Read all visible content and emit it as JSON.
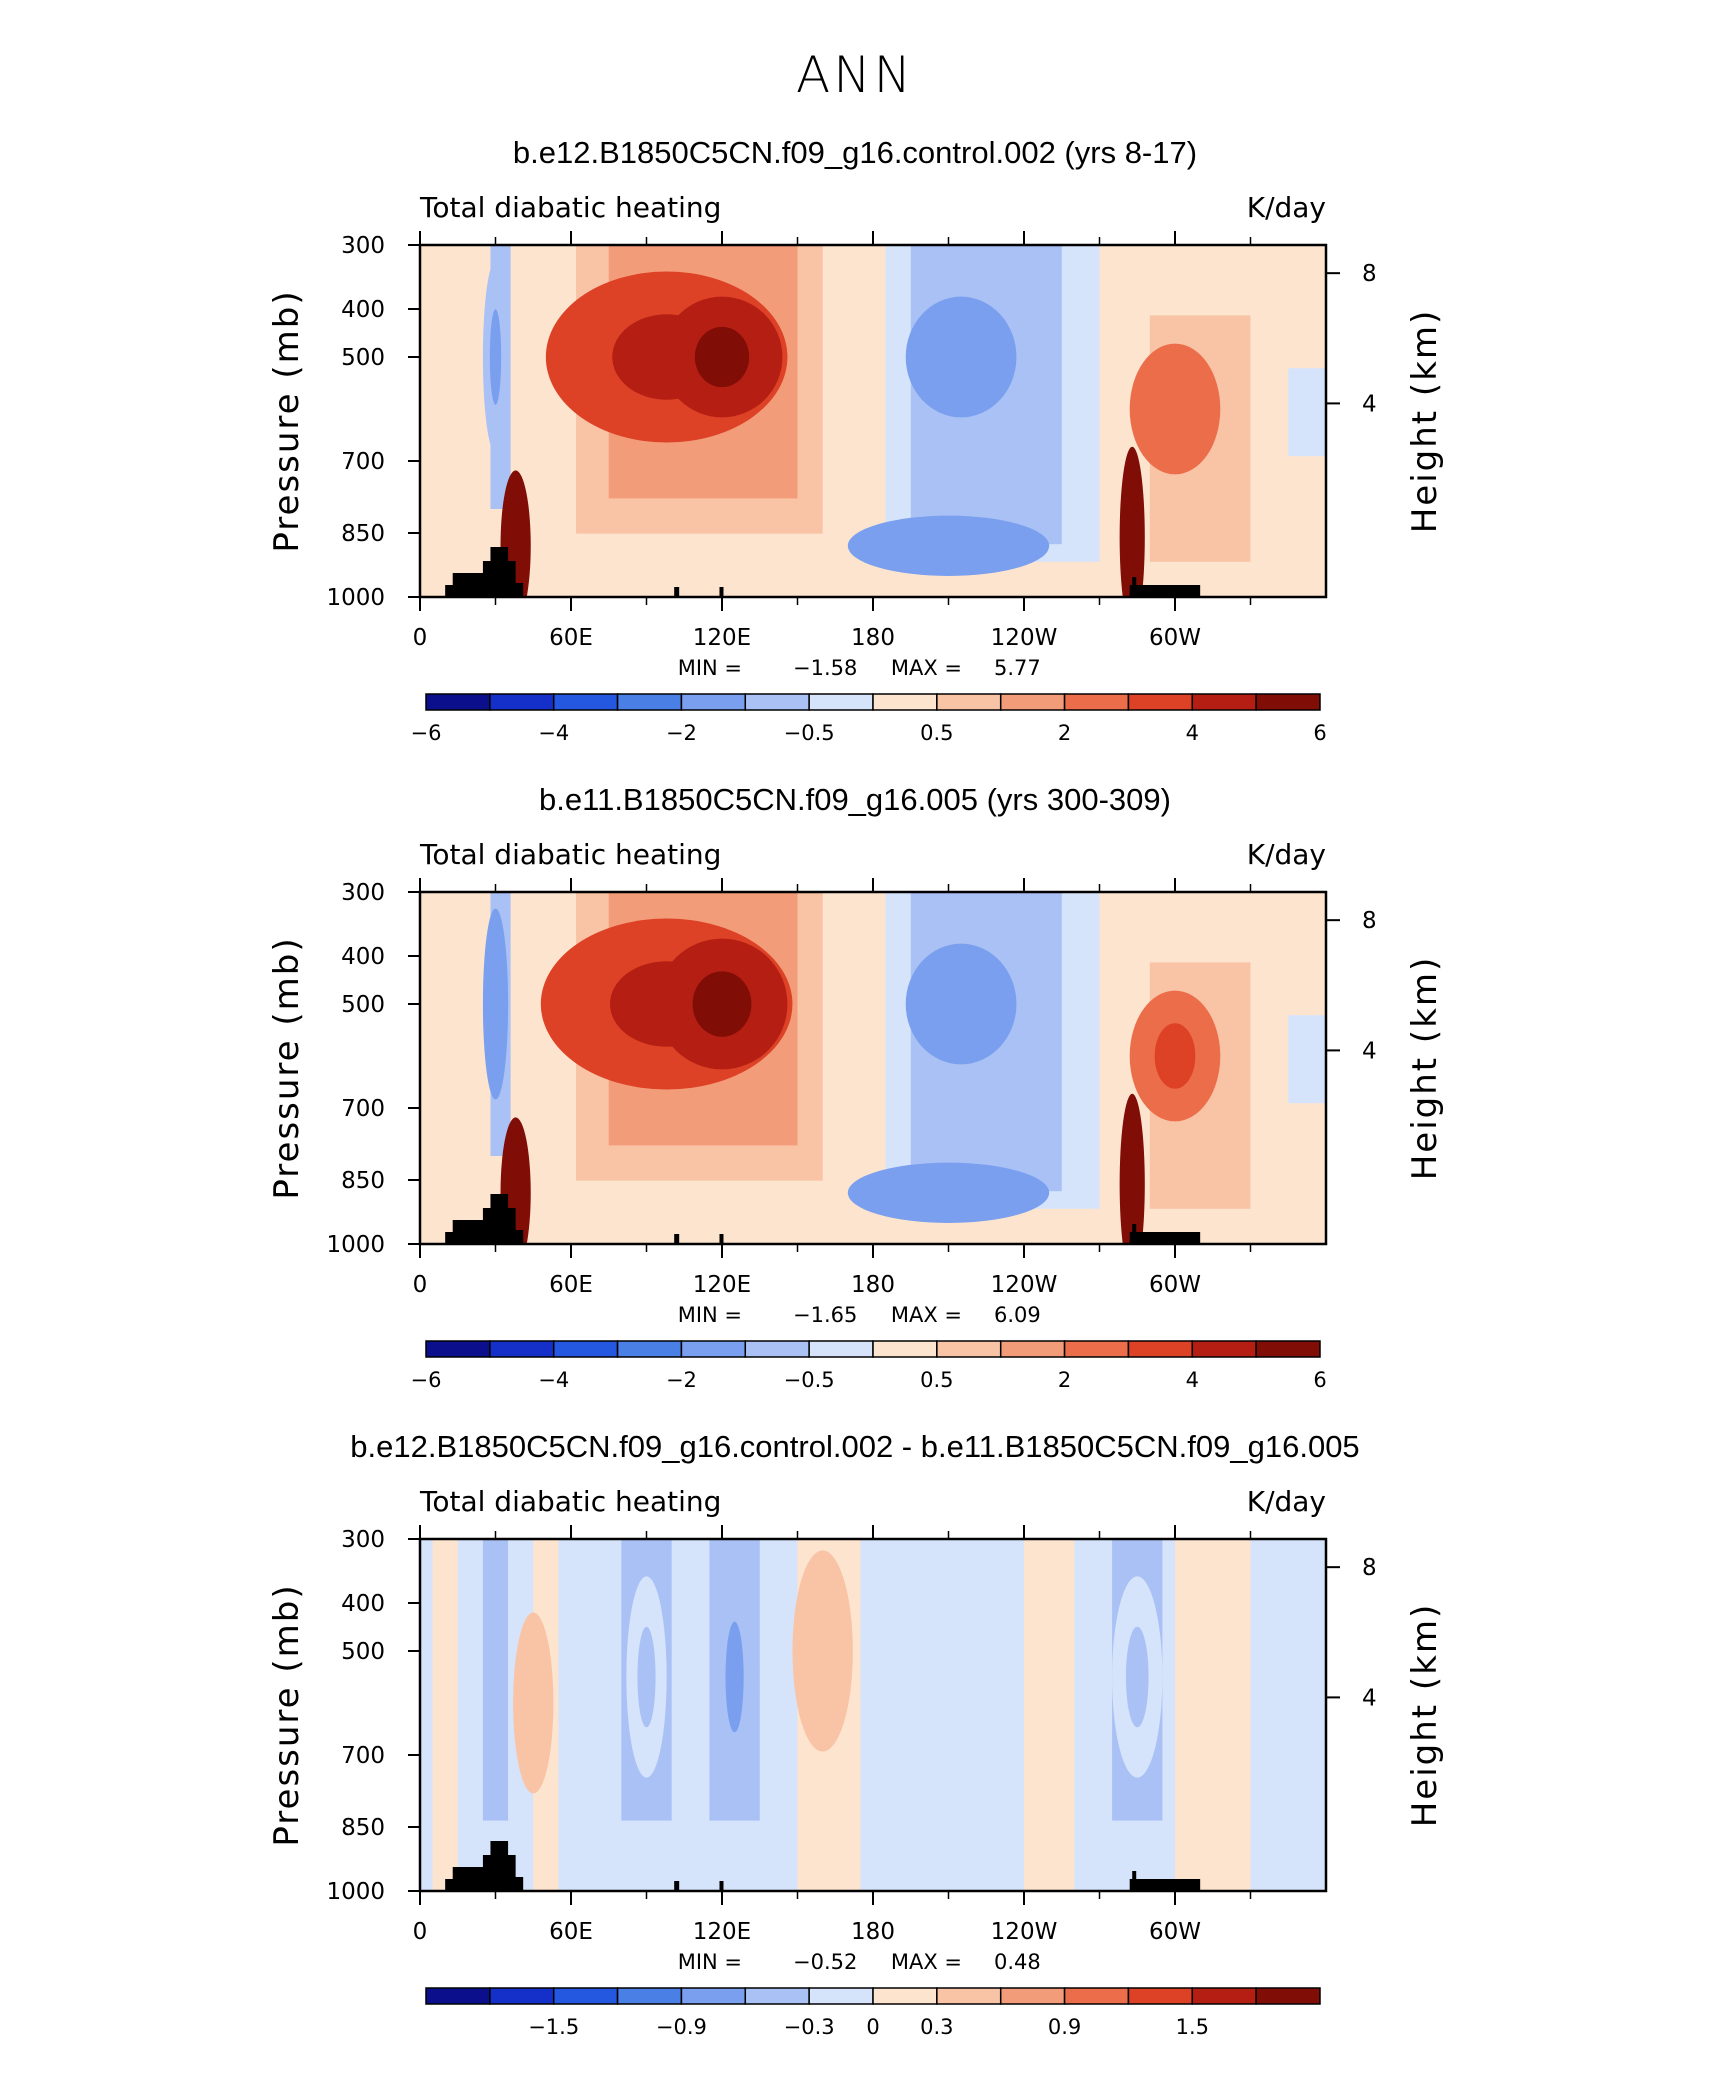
{
  "page_title": "ANN",
  "chart_data": [
    {
      "type": "heatmap",
      "title": "b.e12.B1850C5CN.f09_g16.control.002 (yrs 8-17)",
      "left_label": "Total diabatic heating",
      "right_label": "K/day",
      "ylabel": "Pressure (mb)",
      "ylabel2": "Height (km)",
      "xlabels": [
        "0",
        "60E",
        "120E",
        "180",
        "120W",
        "60W"
      ],
      "ylabels": [
        "300",
        "400",
        "500",
        "700",
        "850",
        "1000"
      ],
      "y2labels": [
        "8",
        "4"
      ],
      "min_label": "MIN =",
      "min_value": "−1.58",
      "max_label": "MAX =",
      "max_value": "5.77",
      "colorbar_ticks": [
        "−6",
        "−4",
        "−2",
        "−0.5",
        "0.5",
        "2",
        "4",
        "6"
      ],
      "features": [
        {
          "lon": 98,
          "lev": 500,
          "w": 48,
          "h": 170,
          "value": 3.2
        },
        {
          "lon": 120,
          "lev": 500,
          "w": 24,
          "h": 120,
          "value": 4.2
        },
        {
          "lon": 38,
          "lev": 880,
          "w": 6,
          "h": 150,
          "value": 5.8
        },
        {
          "lon": 283,
          "lev": 860,
          "w": 5,
          "h": 180,
          "value": 5.2
        },
        {
          "lon": 300,
          "lev": 600,
          "w": 18,
          "h": 130,
          "value": 2.3
        },
        {
          "lon": 215,
          "lev": 500,
          "w": 22,
          "h": 120,
          "value": -1.5
        },
        {
          "lon": 210,
          "lev": 880,
          "w": 40,
          "h": 60,
          "value": -1.5
        },
        {
          "lon": 30,
          "lev": 500,
          "w": 5,
          "h": 190,
          "value": -1.0
        }
      ]
    },
    {
      "type": "heatmap",
      "title": "b.e11.B1850C5CN.f09_g16.005 (yrs 300-309)",
      "left_label": "Total diabatic heating",
      "right_label": "K/day",
      "ylabel": "Pressure (mb)",
      "ylabel2": "Height (km)",
      "xlabels": [
        "0",
        "60E",
        "120E",
        "180",
        "120W",
        "60W"
      ],
      "ylabels": [
        "300",
        "400",
        "500",
        "700",
        "850",
        "1000"
      ],
      "y2labels": [
        "8",
        "4"
      ],
      "min_label": "MIN =",
      "min_value": "−1.65",
      "max_label": "MAX =",
      "max_value": "6.09",
      "colorbar_ticks": [
        "−6",
        "−4",
        "−2",
        "−0.5",
        "0.5",
        "2",
        "4",
        "6"
      ],
      "features": [
        {
          "lon": 98,
          "lev": 500,
          "w": 50,
          "h": 170,
          "value": 3.3
        },
        {
          "lon": 120,
          "lev": 500,
          "w": 26,
          "h": 130,
          "value": 4.4
        },
        {
          "lon": 38,
          "lev": 880,
          "w": 6,
          "h": 150,
          "value": 6.0
        },
        {
          "lon": 283,
          "lev": 860,
          "w": 5,
          "h": 180,
          "value": 5.4
        },
        {
          "lon": 300,
          "lev": 600,
          "w": 18,
          "h": 130,
          "value": 2.4
        },
        {
          "lon": 215,
          "lev": 500,
          "w": 22,
          "h": 120,
          "value": -1.6
        },
        {
          "lon": 210,
          "lev": 880,
          "w": 40,
          "h": 60,
          "value": -1.6
        },
        {
          "lon": 30,
          "lev": 500,
          "w": 5,
          "h": 190,
          "value": -1.1
        }
      ]
    },
    {
      "type": "heatmap",
      "title": "b.e12.B1850C5CN.f09_g16.control.002 - b.e11.B1850C5CN.f09_g16.005",
      "left_label": "Total diabatic heating",
      "right_label": "K/day",
      "ylabel": "Pressure (mb)",
      "ylabel2": "Height (km)",
      "xlabels": [
        "0",
        "60E",
        "120E",
        "180",
        "120W",
        "60W"
      ],
      "ylabels": [
        "300",
        "400",
        "500",
        "700",
        "850",
        "1000"
      ],
      "y2labels": [
        "8",
        "4"
      ],
      "min_label": "MIN =",
      "min_value": "−0.52",
      "max_label": "MAX =",
      "max_value": "0.48",
      "colorbar_ticks": [
        "−1.5",
        "−0.9",
        "−0.3",
        "0",
        "0.3",
        "0.9",
        "1.5"
      ],
      "features": [
        {
          "lon": 125,
          "lev": 550,
          "w": 8,
          "h": 220,
          "value": -0.5
        },
        {
          "lon": 90,
          "lev": 550,
          "w": 8,
          "h": 200,
          "value": -0.3
        },
        {
          "lon": 160,
          "lev": 500,
          "w": 12,
          "h": 200,
          "value": 0.3
        },
        {
          "lon": 285,
          "lev": 550,
          "w": 10,
          "h": 200,
          "value": -0.3
        },
        {
          "lon": 45,
          "lev": 600,
          "w": 8,
          "h": 180,
          "value": 0.3
        },
        {
          "lon": 320,
          "lev": 500,
          "w": 8,
          "h": 160,
          "value": 0.2
        }
      ]
    }
  ]
}
